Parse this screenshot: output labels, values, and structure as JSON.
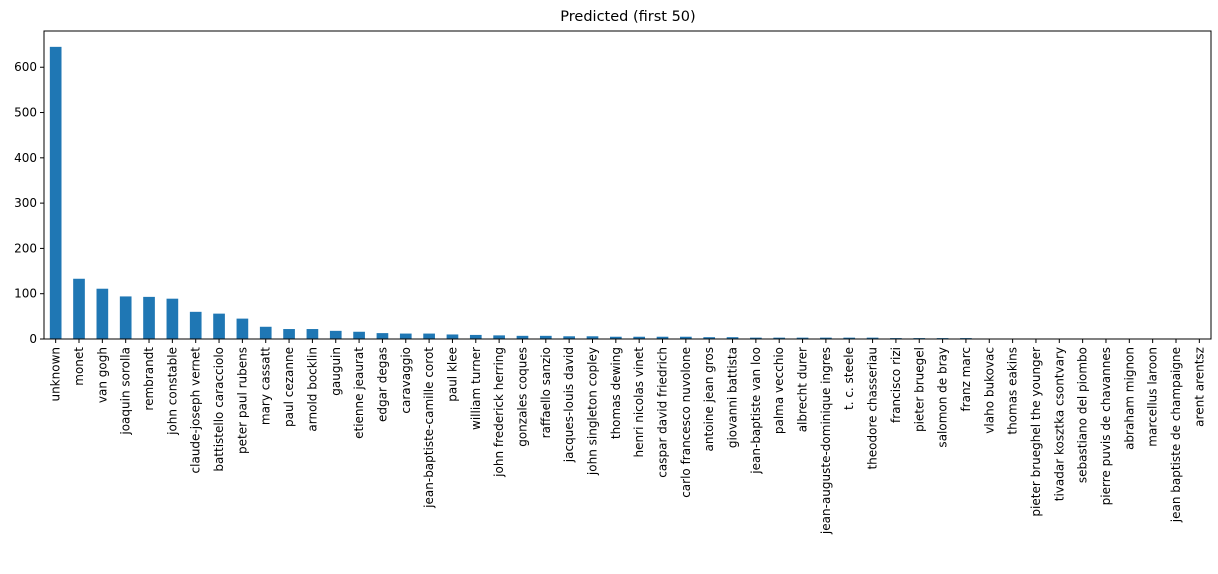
{
  "chart_data": {
    "type": "bar",
    "title": "Predicted (first 50)",
    "xlabel": "",
    "ylabel": "",
    "ylim": [
      0,
      680
    ],
    "yticks": [
      0,
      100,
      200,
      300,
      400,
      500,
      600
    ],
    "grid": false,
    "legend": "none",
    "bar_color": "#1f77b4",
    "categories": [
      "unknown",
      "monet",
      "van gogh",
      "joaquin sorolla",
      "rembrandt",
      "john constable",
      "claude-joseph vernet",
      "battistello caracciolo",
      "peter paul rubens",
      "mary cassatt",
      "paul cezanne",
      "arnold bocklin",
      "gauguin",
      "etienne jeaurat",
      "edgar degas",
      "caravaggio",
      "jean-baptiste-camille corot",
      "paul klee",
      "william turner",
      "john frederick herring",
      "gonzales coques",
      "raffaello sanzio",
      "jacques-louis david",
      "john singleton copley",
      "thomas dewing",
      "henri nicolas vinet",
      "caspar david friedrich",
      "carlo francesco nuvolone",
      "antoine jean gros",
      "giovanni battista",
      "jean-baptiste van loo",
      "palma vecchio",
      "albrecht durer",
      "jean-auguste-dominique ingres",
      "t. c. steele",
      "theodore chasseriau",
      "francisco rizi",
      "pieter bruegel",
      "salomon de bray",
      "franz marc",
      "vlaho bukovac",
      "thomas eakins",
      "pieter brueghel the younger",
      "tivadar kosztka csontvary",
      "sebastiano del piombo",
      "pierre puvis de chavannes",
      "abraham mignon",
      "marcellus laroon",
      "jean baptiste de champaigne",
      "arent arentsz"
    ],
    "values": [
      645,
      133,
      111,
      94,
      93,
      89,
      60,
      56,
      45,
      27,
      22,
      22,
      18,
      16,
      13,
      12,
      12,
      10,
      9,
      8,
      7,
      7,
      6,
      6,
      5,
      5,
      5,
      5,
      4,
      4,
      3,
      3,
      3,
      3,
      3,
      3,
      2,
      2,
      2,
      2,
      1,
      1,
      1,
      1,
      1,
      1,
      1,
      1,
      1,
      1
    ]
  }
}
